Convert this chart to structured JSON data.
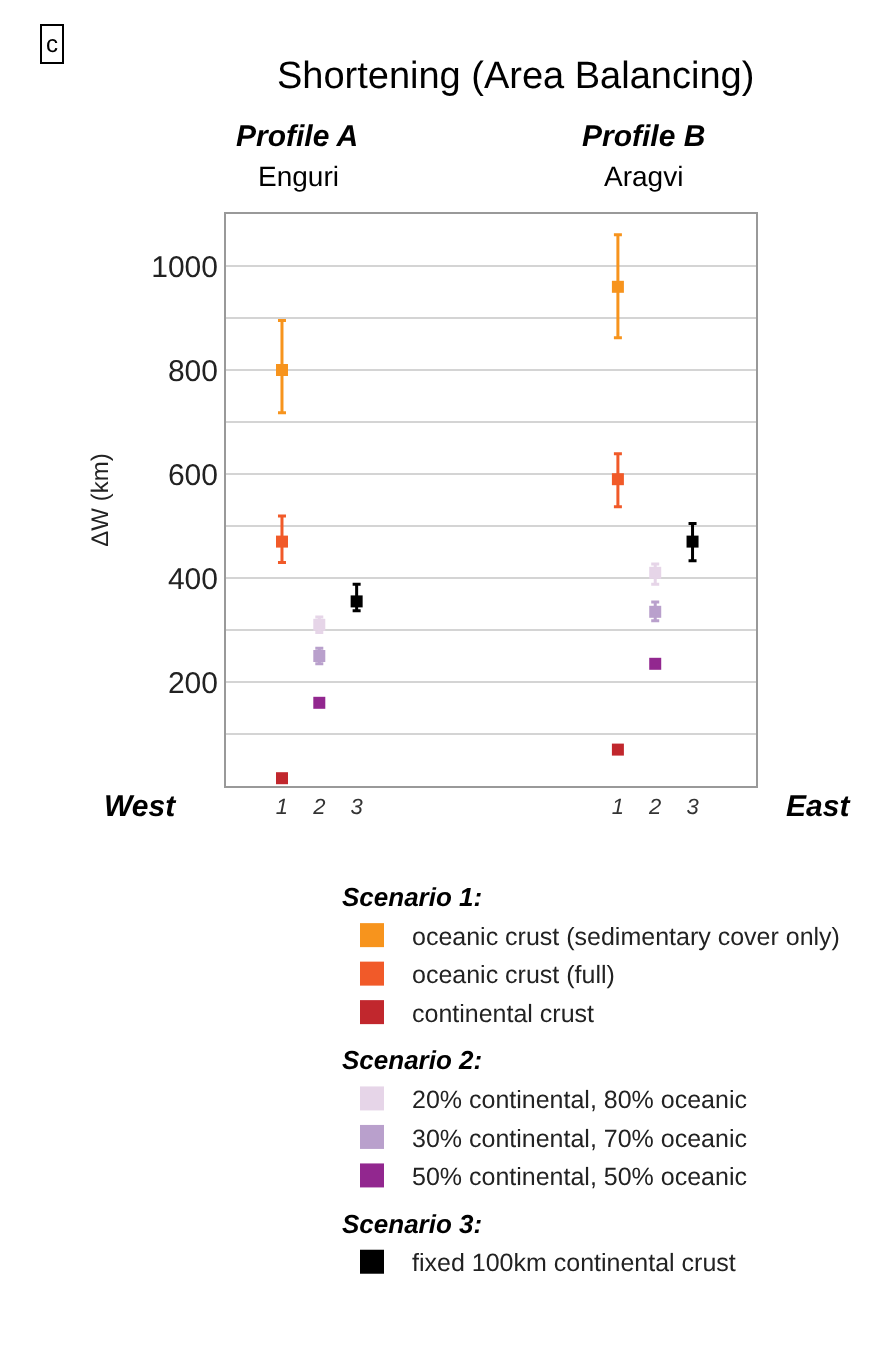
{
  "chart_data": {
    "type": "scatter",
    "title": "Shortening (Area Balancing)",
    "ylabel": "ΔW (km)",
    "annotations": [
      "c",
      "Profile A",
      "Enguri",
      "Profile B",
      "Aragvi",
      "West",
      "East",
      "Scenario 1:",
      "Scenario 2:",
      "Scenario 3:"
    ],
    "categories": [
      "1",
      "2",
      "3",
      null,
      null,
      null,
      null,
      null,
      null,
      "1",
      "2",
      "3"
    ],
    "series": [
      {
        "name": "oceanic crust (sedimentary cover only)",
        "color": "#f7941d",
        "values": [
          800,
          null,
          null,
          null,
          null,
          null,
          null,
          null,
          null,
          960,
          null,
          null
        ],
        "errors": [
          [
            718,
            895
          ],
          null,
          null,
          null,
          null,
          null,
          null,
          null,
          null,
          [
            862,
            1060
          ],
          null,
          null
        ]
      },
      {
        "name": "oceanic crust (full)",
        "color": "#f15a29",
        "values": [
          470,
          null,
          null,
          null,
          null,
          null,
          null,
          null,
          null,
          590,
          null,
          null
        ],
        "errors": [
          [
            430,
            519
          ],
          null,
          null,
          null,
          null,
          null,
          null,
          null,
          null,
          [
            537,
            639
          ],
          null,
          null
        ]
      },
      {
        "name": "continental crust",
        "color": "#c1272d",
        "values": [
          15,
          null,
          null,
          null,
          null,
          null,
          null,
          null,
          null,
          70,
          null,
          null
        ]
      },
      {
        "name": "20% continental, 80% oceanic",
        "color": "#e6d5e8",
        "values": [
          null,
          310,
          null,
          null,
          null,
          null,
          null,
          null,
          null,
          null,
          410,
          null
        ],
        "errors": [
          null,
          [
            295,
            325
          ],
          null,
          null,
          null,
          null,
          null,
          null,
          null,
          null,
          [
            388,
            427
          ],
          null
        ]
      },
      {
        "name": "30% continental, 70% oceanic",
        "color": "#b9a0cc",
        "values": [
          null,
          250,
          null,
          null,
          null,
          null,
          null,
          null,
          null,
          null,
          335,
          null
        ],
        "errors": [
          null,
          [
            235,
            265
          ],
          null,
          null,
          null,
          null,
          null,
          null,
          null,
          null,
          [
            318,
            354
          ],
          null
        ]
      },
      {
        "name": "50% continental, 50% oceanic",
        "color": "#92278f",
        "values": [
          null,
          160,
          null,
          null,
          null,
          null,
          null,
          null,
          null,
          null,
          235,
          null
        ]
      },
      {
        "name": "fixed 100km continental crust",
        "color": "#000000",
        "values": [
          null,
          null,
          355,
          null,
          null,
          null,
          null,
          null,
          null,
          null,
          null,
          470
        ],
        "errors": [
          null,
          null,
          [
            337,
            388
          ],
          null,
          null,
          null,
          null,
          null,
          null,
          null,
          null,
          [
            433,
            505
          ]
        ]
      }
    ],
    "ylim": [
      0,
      1100
    ],
    "yticks": [
      {
        "value": 100,
        "label": null
      },
      200,
      {
        "value": 300,
        "label": null
      },
      400,
      {
        "value": 500,
        "label": null
      },
      600,
      {
        "value": 700,
        "label": null
      },
      800,
      {
        "value": 900,
        "label": null
      },
      1000
    ],
    "grid": "y",
    "marker": "square",
    "legend": "bottom"
  }
}
